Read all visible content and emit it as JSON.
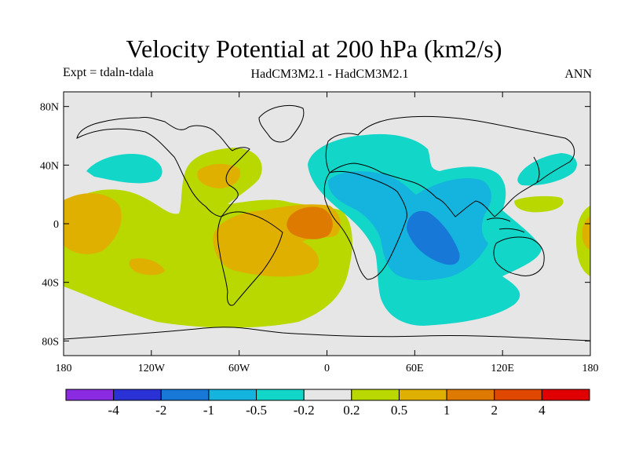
{
  "title": "Velocity Potential at 200 hPa (km2/s)",
  "experiment": "Expt = tdaln-tdala",
  "model_comparison": "HadCM3M2.1 - HadCM3M2.1",
  "season": "ANN",
  "map": {
    "projection": "cylindrical-equidistant",
    "lon_range": [
      -180,
      180
    ],
    "lat_range": [
      -90,
      90
    ],
    "ocean_background_color": "#e6e6e6",
    "coastline_color": "#000000",
    "lat_ticks": [
      {
        "value": 80,
        "label": "80N"
      },
      {
        "value": 40,
        "label": "40N"
      },
      {
        "value": 0,
        "label": "0"
      },
      {
        "value": -40,
        "label": "40S"
      },
      {
        "value": -80,
        "label": "80S"
      }
    ],
    "lon_ticks": [
      {
        "value": -180,
        "label": "180"
      },
      {
        "value": -120,
        "label": "120W"
      },
      {
        "value": -60,
        "label": "60W"
      },
      {
        "value": 0,
        "label": "0"
      },
      {
        "value": 60,
        "label": "60E"
      },
      {
        "value": 120,
        "label": "120E"
      },
      {
        "value": 180,
        "label": "180"
      }
    ]
  },
  "colorbar": {
    "colors": [
      "#8a2be2",
      "#2a32d6",
      "#1878d8",
      "#14b4de",
      "#12d6c8",
      "#e6e6e6",
      "#b8d800",
      "#dfb000",
      "#de7a00",
      "#e04800",
      "#e00000"
    ],
    "labels": [
      "-4",
      "-2",
      "-1",
      "-0.5",
      "-0.2",
      "0.2",
      "0.5",
      "1",
      "2",
      "4"
    ]
  },
  "chart_data": {
    "type": "heatmap",
    "title": "Velocity Potential at 200 hPa (km2/s)",
    "subtitle": "HadCM3M2.1 - HadCM3M2.1",
    "experiment": "Expt = tdaln-tdala",
    "season": "ANN",
    "x": {
      "name": "longitude",
      "range": [
        -180,
        180
      ]
    },
    "y": {
      "name": "latitude",
      "range": [
        -90,
        90
      ]
    },
    "levels": [
      -4,
      -2,
      -1,
      -0.5,
      -0.2,
      0.2,
      0.5,
      1,
      2,
      4
    ],
    "regions": [
      {
        "name": "indian-ocean-minimum",
        "level": -1,
        "center": [
          75,
          -18
        ]
      },
      {
        "name": "indian-ocean-negative",
        "level": -0.5,
        "center": [
          65,
          -5
        ]
      },
      {
        "name": "middle-east-africa-negative",
        "level": -0.2,
        "center": [
          60,
          10
        ]
      },
      {
        "name": "north-pacific-negative",
        "level": -0.2,
        "center": [
          -140,
          38
        ]
      },
      {
        "name": "west-pacific-negative",
        "level": -0.2,
        "center": [
          150,
          38
        ]
      },
      {
        "name": "tropical-atlantic-maximum",
        "level": 1,
        "center": [
          -5,
          0
        ]
      },
      {
        "name": "south-america-positive",
        "level": 0.5,
        "center": [
          -50,
          -10
        ]
      },
      {
        "name": "atlantic-pacific-positive",
        "level": 0.2,
        "center": [
          -60,
          -10
        ]
      }
    ]
  }
}
